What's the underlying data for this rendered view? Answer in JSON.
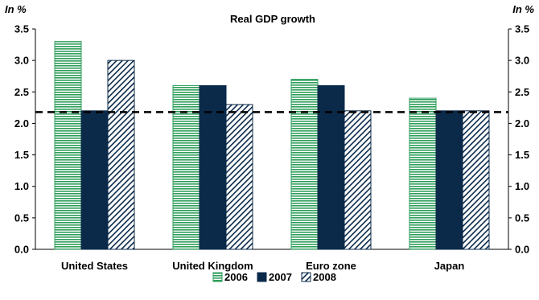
{
  "chart_data": {
    "type": "bar",
    "title": "Real GDP growth",
    "ylabel_left": "In %",
    "ylabel_right": "In %",
    "categories": [
      "United States",
      "United Kingdom",
      "Euro zone",
      "Japan"
    ],
    "series": [
      {
        "name": "2006",
        "values": [
          3.3,
          2.6,
          2.7,
          2.4
        ],
        "color": "#2e9e5b",
        "pattern": "horizontal-stripes"
      },
      {
        "name": "2007",
        "values": [
          2.2,
          2.6,
          2.6,
          2.2
        ],
        "color": "#0b2a4a",
        "pattern": "solid"
      },
      {
        "name": "2008",
        "values": [
          3.0,
          2.3,
          2.2,
          2.2
        ],
        "color": "#0b2a4a",
        "pattern": "diagonal-hatch"
      }
    ],
    "ylim": [
      0,
      3.5
    ],
    "yticks": [
      "0.0",
      "0.5",
      "1.0",
      "1.5",
      "2.0",
      "2.5",
      "3.0",
      "3.5"
    ],
    "reference_line": {
      "value": 2.18,
      "style": "dashed"
    },
    "grid": false,
    "legend_position": "bottom"
  }
}
